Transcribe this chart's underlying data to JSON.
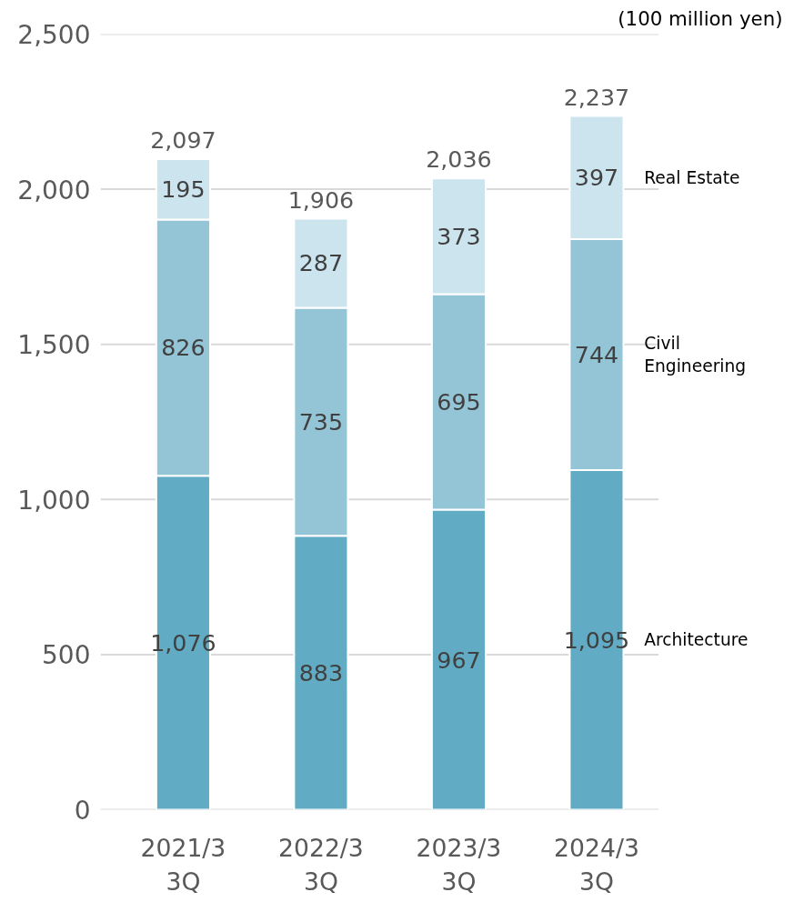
{
  "chart_data": {
    "type": "bar",
    "stacked": true,
    "categories": [
      "2021/3\n3Q",
      "2022/3\n3Q",
      "2023/3\n3Q",
      "2024/3\n3Q"
    ],
    "series": [
      {
        "name": "Architecture",
        "color": "#61acc4",
        "values": [
          1076,
          883,
          967,
          1095
        ],
        "value_labels": [
          "1,076",
          "883",
          "967",
          "1,095"
        ]
      },
      {
        "name": "Civil\nEngineering",
        "color": "#94c5d6",
        "values": [
          826,
          735,
          695,
          744
        ],
        "value_labels": [
          "826",
          "735",
          "695",
          "744"
        ]
      },
      {
        "name": "Real Estate",
        "color": "#cce4ee",
        "values": [
          195,
          287,
          373,
          397
        ],
        "value_labels": [
          "195",
          "287",
          "373",
          "397"
        ]
      }
    ],
    "totals": [
      "2,097",
      "1,906",
      "2,036",
      "2,237"
    ],
    "ylim": [
      0,
      2500
    ],
    "yticks": [
      {
        "value": 0,
        "label": "0"
      },
      {
        "value": 500,
        "label": "500"
      },
      {
        "value": 1000,
        "label": "1,000"
      },
      {
        "value": 1500,
        "label": "1,500"
      },
      {
        "value": 2000,
        "label": "2,000"
      },
      {
        "value": 2500,
        "label": "2,500"
      }
    ],
    "grid": "y",
    "annotations": [
      "(100 million yen)"
    ]
  }
}
